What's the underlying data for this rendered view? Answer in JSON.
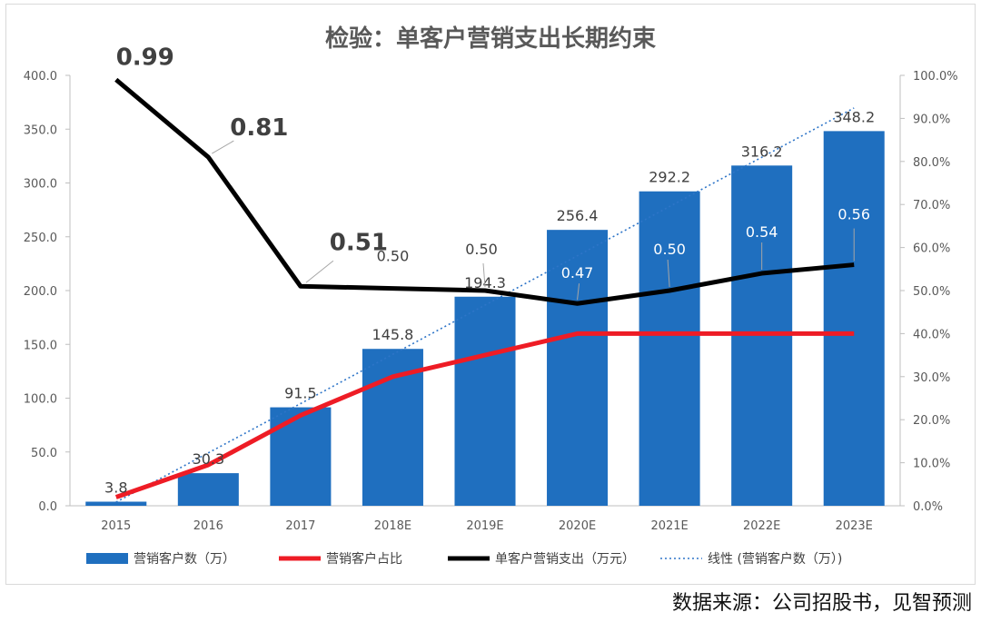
{
  "chart_data": {
    "type": "bar",
    "title": "检验：单客户营销支出长期约束",
    "categories": [
      "2015",
      "2016",
      "2017",
      "2018E",
      "2019E",
      "2020E",
      "2021E",
      "2022E",
      "2023E"
    ],
    "left_axis": {
      "min": 0,
      "max": 400,
      "step": 50,
      "ticks": [
        "0.0",
        "50.0",
        "100.0",
        "150.0",
        "200.0",
        "250.0",
        "300.0",
        "350.0",
        "400.0"
      ]
    },
    "right_axis": {
      "min": 0,
      "max": 1.0,
      "step": 0.1,
      "ticks": [
        "0.0%",
        "10.0%",
        "20.0%",
        "30.0%",
        "40.0%",
        "50.0%",
        "60.0%",
        "70.0%",
        "80.0%",
        "90.0%",
        "100.0%"
      ]
    },
    "series": [
      {
        "name": "营销客户数（万）",
        "kind": "bar",
        "axis": "left",
        "color": "#1f6fbf",
        "values": [
          3.8,
          30.3,
          91.5,
          145.8,
          194.3,
          256.4,
          292.2,
          316.2,
          348.2
        ],
        "labels": [
          "3.8",
          "30.3",
          "91.5",
          "145.8",
          "194.3",
          "256.4",
          "292.2",
          "316.2",
          "348.2"
        ]
      },
      {
        "name": "营销客户占比",
        "kind": "line",
        "axis": "right",
        "color": "#ee1c25",
        "values": [
          0.02,
          0.095,
          0.21,
          0.3,
          0.35,
          0.4,
          0.4,
          0.4,
          0.4
        ]
      },
      {
        "name": "单客户营销支出（万元）",
        "kind": "line",
        "axis": "right",
        "color": "#000000",
        "values": [
          0.99,
          0.81,
          0.51,
          0.505,
          0.5,
          0.47,
          0.5,
          0.54,
          0.56
        ],
        "labels": [
          "0.99",
          "0.81",
          "0.51",
          "0.50",
          "0.50",
          "0.47",
          "0.50",
          "0.54",
          "0.56"
        ]
      },
      {
        "name": "线性 (营销客户数（万）)",
        "kind": "trendline",
        "axis": "left",
        "color": "#2e75c8"
      }
    ],
    "legend": "bottom",
    "grid": false
  },
  "source_note": "数据来源：公司招股书，见智预测"
}
